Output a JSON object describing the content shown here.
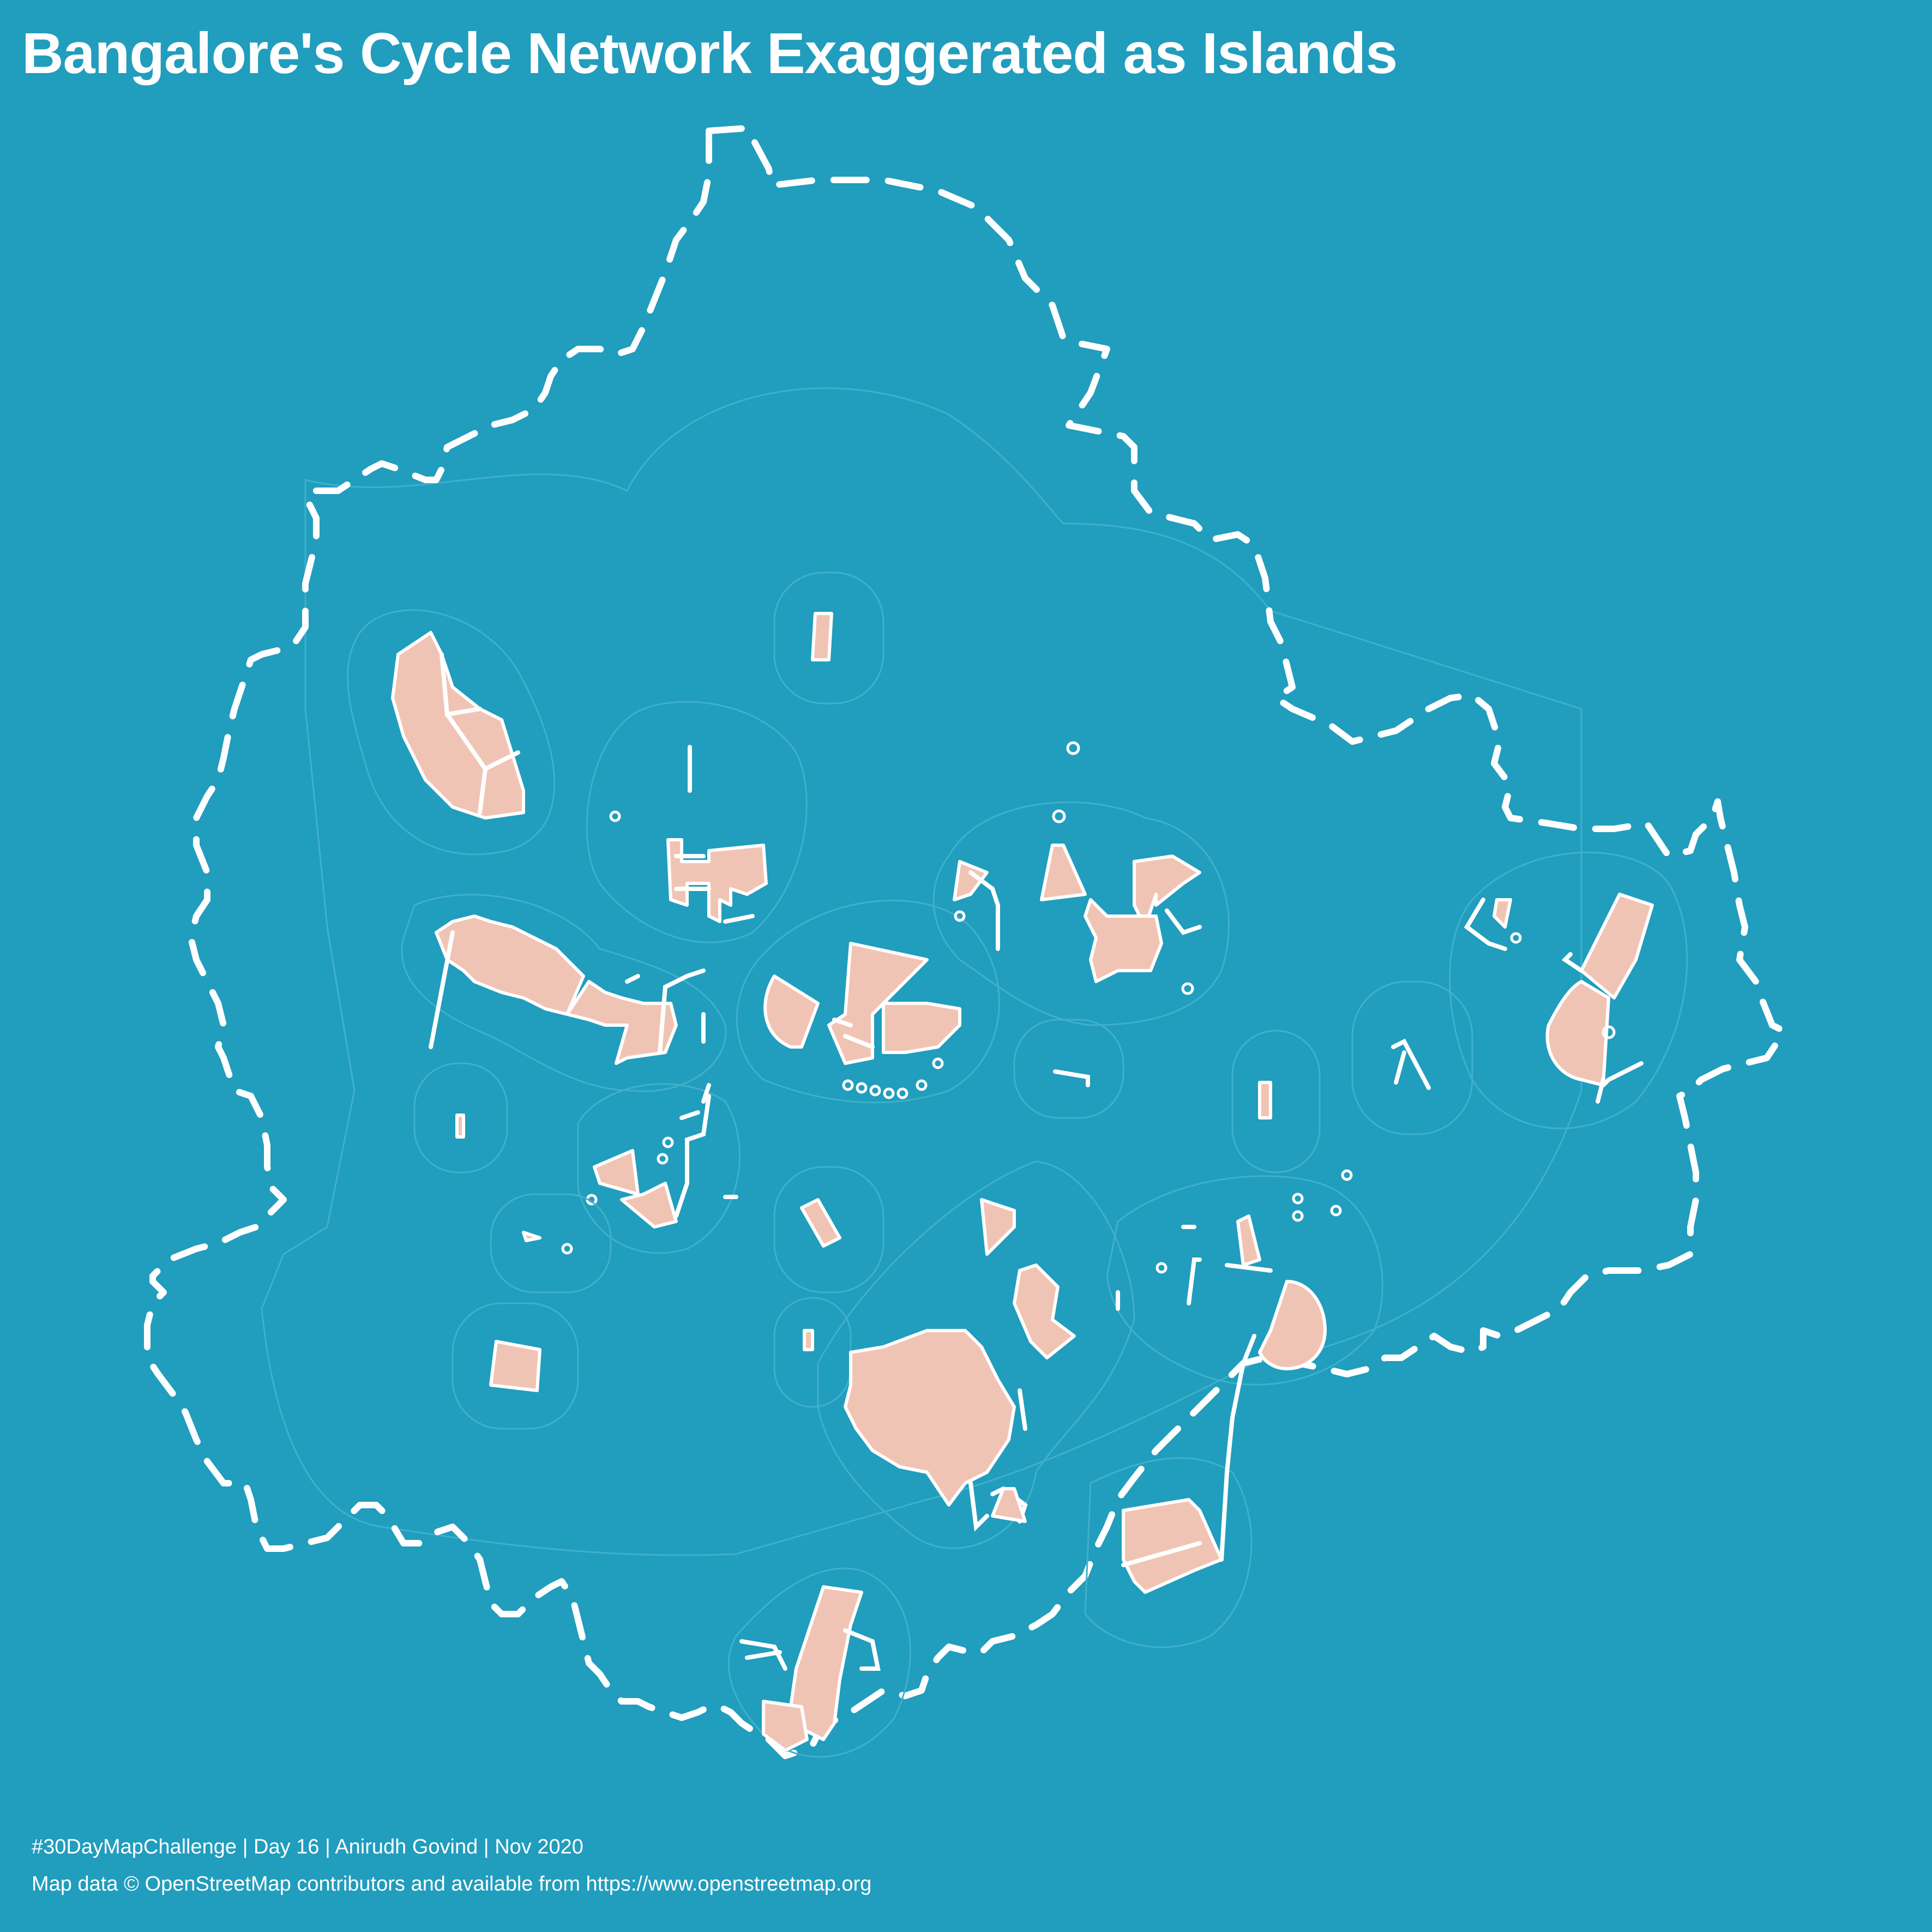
{
  "title": "Bangalore's Cycle Network Exaggerated as Islands",
  "credits": {
    "line1": "#30DayMapChallenge | Day 16 | Anirudh Govind | Nov 2020",
    "line2": "Map data © OpenStreetMap contributors and available from https://www.openstreetmap.org"
  },
  "colors": {
    "sea": "#219dbd",
    "land": "#f0c4b4",
    "outline": "#ffffff",
    "contour": "#3fb0cc"
  }
}
